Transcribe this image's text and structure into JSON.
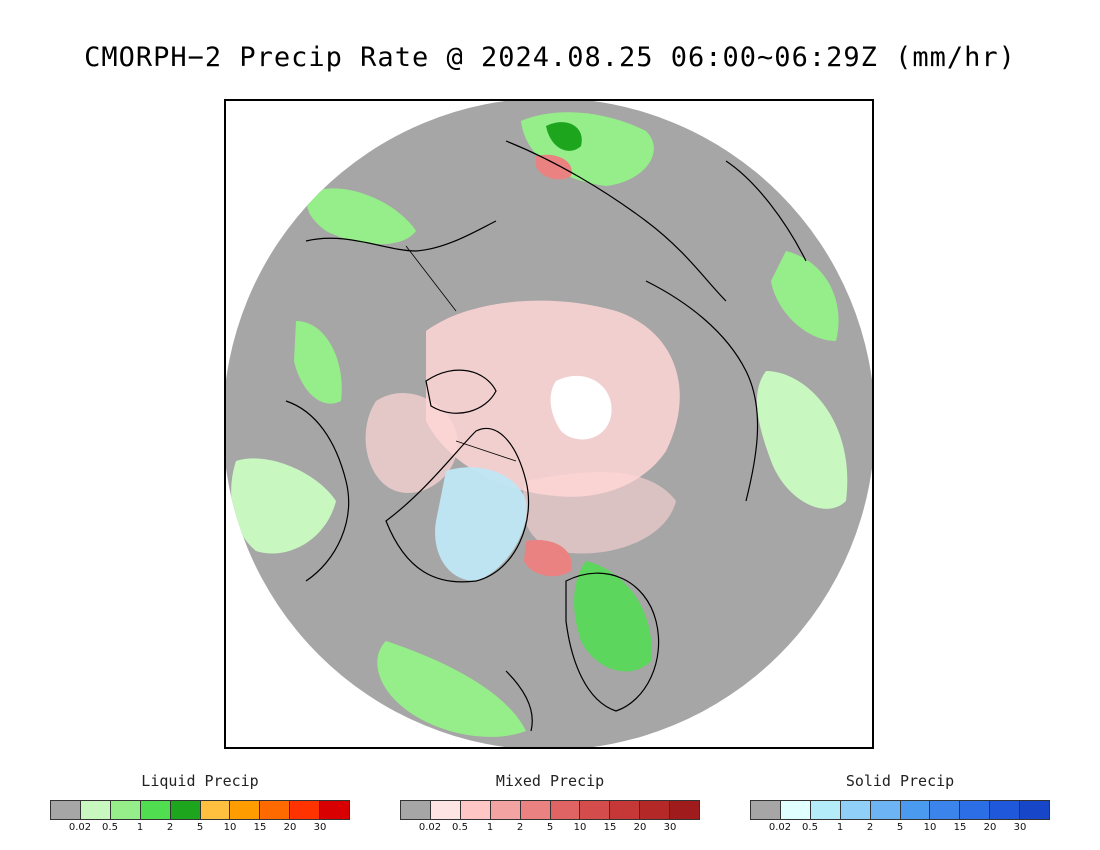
{
  "title": "CMORPH−2 Precip Rate @ 2024.08.25 06:00~06:29Z (mm/hr)",
  "legends": [
    {
      "title": "Liquid Precip",
      "colors": [
        "#a6a6a6",
        "#c8f7c0",
        "#96ee8a",
        "#50de50",
        "#1ea51e",
        "#ffbf3f",
        "#ff9d00",
        "#ff6a00",
        "#ff3300",
        "#d80000"
      ],
      "ticks": [
        "0.02",
        "0.5",
        "1",
        "2",
        "5",
        "10",
        "15",
        "20",
        "30"
      ]
    },
    {
      "title": "Mixed Precip",
      "colors": [
        "#a6a6a6",
        "#ffe4e4",
        "#ffc6c6",
        "#f4a3a3",
        "#ea8282",
        "#e06464",
        "#d44c4c",
        "#c63838",
        "#b42828",
        "#a01c1c"
      ],
      "ticks": [
        "0.02",
        "0.5",
        "1",
        "2",
        "5",
        "10",
        "15",
        "20",
        "30"
      ]
    },
    {
      "title": "Solid Precip",
      "colors": [
        "#a6a6a6",
        "#e0ffff",
        "#b4ecfa",
        "#90d0f8",
        "#6cb4f4",
        "#4a9af0",
        "#3a84ec",
        "#2c6ee6",
        "#2058dc",
        "#1846c8"
      ],
      "ticks": [
        "0.02",
        "0.5",
        "1",
        "2",
        "5",
        "10",
        "15",
        "20",
        "30"
      ]
    }
  ],
  "map": {
    "background": "#a6a6a6",
    "coastline_color": "#000000"
  }
}
